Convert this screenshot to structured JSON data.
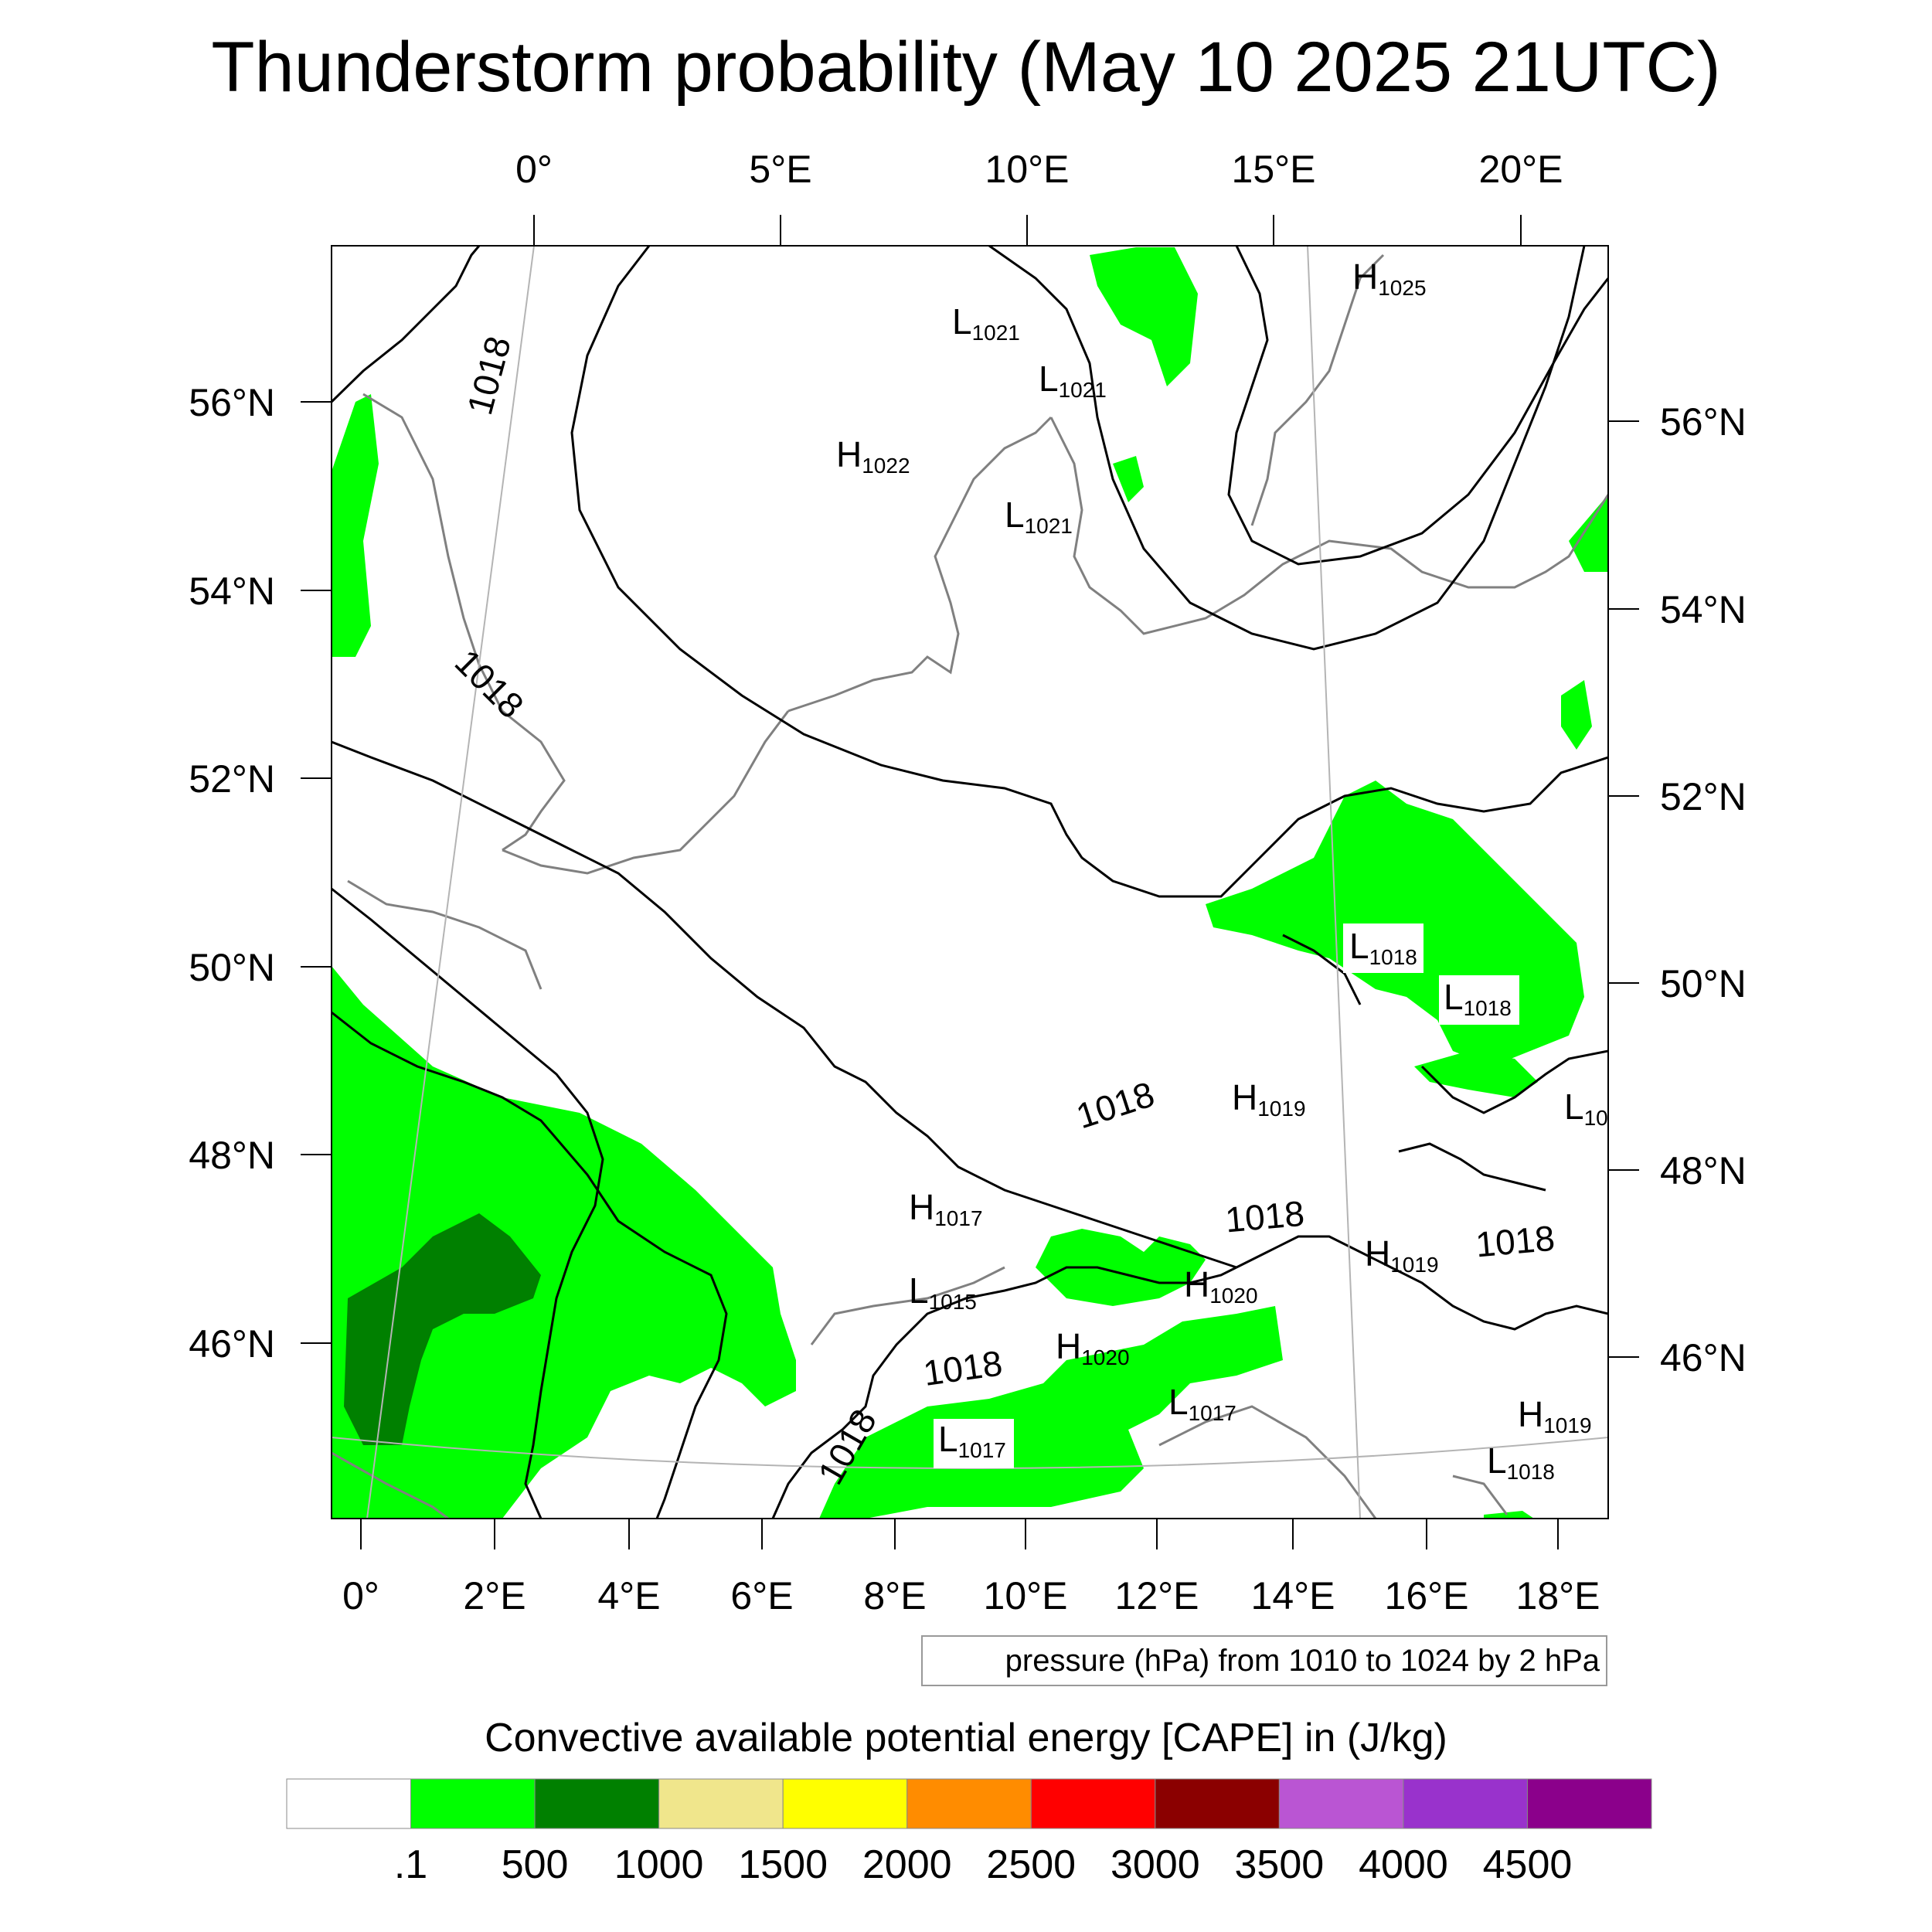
{
  "title": "Thunderstorm probability (May 10 2025 21UTC)",
  "map": {
    "top_lon_labels": [
      "0°",
      "5°E",
      "10°E",
      "15°E",
      "20°E"
    ],
    "bottom_lon_labels": [
      "0°",
      "2°E",
      "4°E",
      "6°E",
      "8°E",
      "10°E",
      "12°E",
      "14°E",
      "16°E",
      "18°E"
    ],
    "left_lat_labels": [
      "56°N",
      "54°N",
      "52°N",
      "50°N",
      "48°N",
      "46°N"
    ],
    "right_lat_labels": [
      "56°N",
      "54°N",
      "52°N",
      "50°N",
      "48°N",
      "46°N"
    ],
    "contour_labels": [
      "1018",
      "1018",
      "1018",
      "1018",
      "1018",
      "1018",
      "1018"
    ],
    "pressure_centers": [
      {
        "letter": "H",
        "value": "1025"
      },
      {
        "letter": "L",
        "value": "1021"
      },
      {
        "letter": "L",
        "value": "1021"
      },
      {
        "letter": "H",
        "value": "1022"
      },
      {
        "letter": "L",
        "value": "1021"
      },
      {
        "letter": "L",
        "value": "1018"
      },
      {
        "letter": "L",
        "value": "1018"
      },
      {
        "letter": "H",
        "value": "1019"
      },
      {
        "letter": "L",
        "value": "10"
      },
      {
        "letter": "H",
        "value": "1017"
      },
      {
        "letter": "H",
        "value": "1019"
      },
      {
        "letter": "H",
        "value": "1020"
      },
      {
        "letter": "L",
        "value": "1015"
      },
      {
        "letter": "H",
        "value": "1020"
      },
      {
        "letter": "L",
        "value": "1017"
      },
      {
        "letter": "L",
        "value": "1017"
      },
      {
        "letter": "H",
        "value": "1019"
      },
      {
        "letter": "L",
        "value": "1018"
      }
    ],
    "contour_info": "pressure (hPa) from 1010 to 1024 by 2 hPa"
  },
  "legend": {
    "title": "Convective available potential energy [CAPE] in (J/kg)",
    "colors": [
      "#ffffff",
      "#00ff00",
      "#008000",
      "#f0e68c",
      "#ffff00",
      "#ff8c00",
      "#ff0000",
      "#8b0000",
      "#ba55d3",
      "#9932cc",
      "#8b008b"
    ],
    "labels": [
      ".1",
      "500",
      "1000",
      "1500",
      "2000",
      "2500",
      "3000",
      "3500",
      "4000",
      "4500"
    ]
  },
  "colors": {
    "cape_low": "#00ff00",
    "cape_mid": "#008000",
    "coastline": "#808080",
    "isobar": "#000000"
  }
}
